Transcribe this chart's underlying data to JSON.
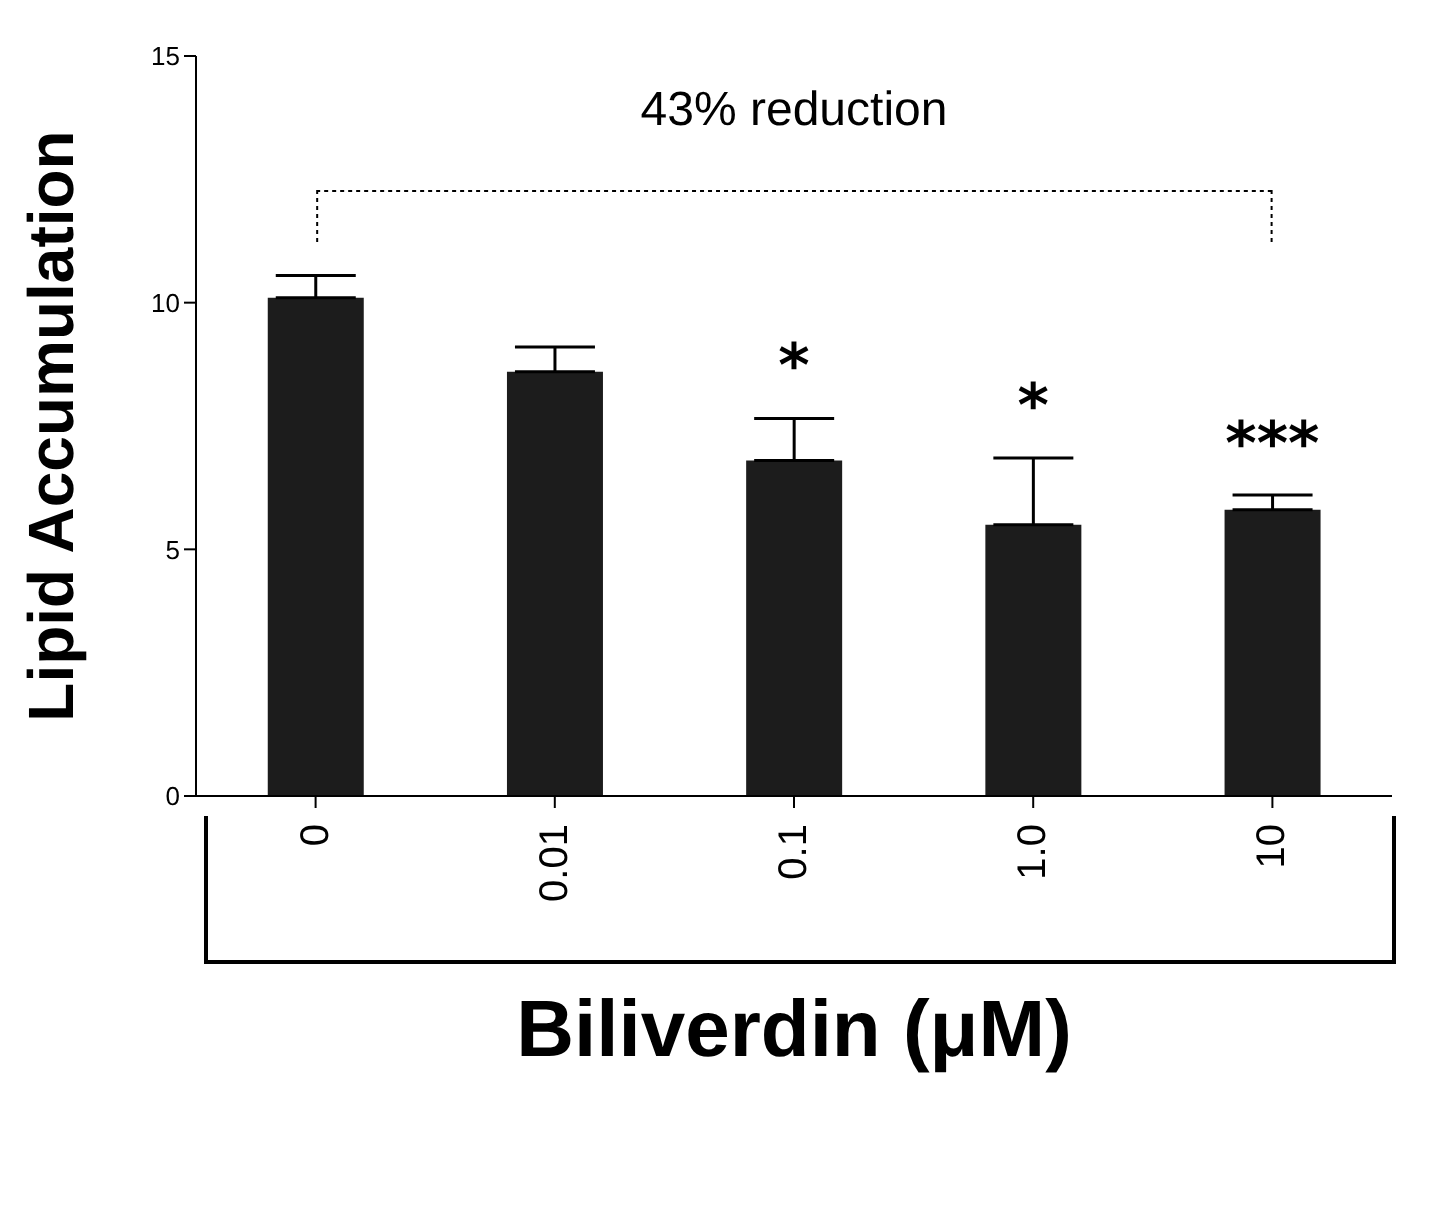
{
  "chart_data": {
    "type": "bar",
    "xlabel": "Biliverdin (μM)",
    "ylabel": "Lipid Accumulation",
    "categories": [
      "0",
      "0.01",
      "0.1",
      "1.0",
      "10"
    ],
    "values": [
      10.1,
      8.6,
      6.8,
      5.5,
      5.8
    ],
    "errors": [
      [
        10.1,
        10.55
      ],
      [
        8.6,
        9.1
      ],
      [
        6.8,
        7.65
      ],
      [
        5.5,
        6.85
      ],
      [
        5.8,
        6.1
      ]
    ],
    "color": "#1c1c1c",
    "ylim": [
      0,
      15
    ],
    "yticks": [
      0,
      5,
      10,
      15
    ],
    "grid": false,
    "legend": false,
    "annotations": [
      "43% reduction",
      "***",
      "*",
      "*"
    ]
  }
}
